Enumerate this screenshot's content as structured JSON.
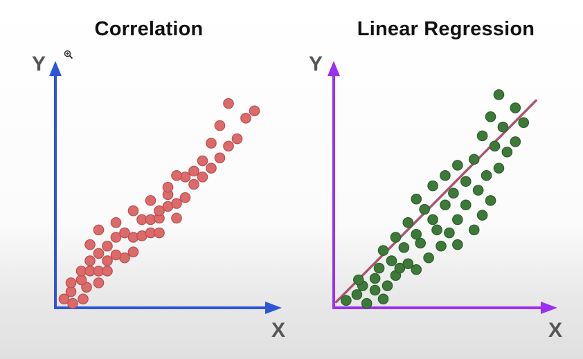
{
  "chart_data": [
    {
      "type": "scatter",
      "title": "Correlation",
      "xlabel": "X",
      "ylabel": "Y",
      "axis_color": "#2d55d6",
      "point_color": "#dd6a6a",
      "point_stroke": "#b94c4c",
      "points": [
        [
          1.0,
          0.6
        ],
        [
          2.0,
          0.3
        ],
        [
          3.2,
          0.6
        ],
        [
          1.8,
          1.1
        ],
        [
          3.6,
          1.4
        ],
        [
          1.8,
          1.7
        ],
        [
          3.0,
          1.9
        ],
        [
          5.0,
          1.7
        ],
        [
          3.0,
          2.5
        ],
        [
          4.0,
          2.5
        ],
        [
          5.0,
          2.5
        ],
        [
          6.0,
          2.5
        ],
        [
          4.0,
          3.2
        ],
        [
          6.0,
          3.2
        ],
        [
          8.0,
          3.4
        ],
        [
          5.0,
          3.7
        ],
        [
          7.0,
          3.6
        ],
        [
          9.0,
          3.8
        ],
        [
          4.0,
          4.3
        ],
        [
          6.0,
          4.2
        ],
        [
          7.0,
          4.8
        ],
        [
          9.0,
          4.8
        ],
        [
          10.0,
          4.9
        ],
        [
          11.0,
          5.1
        ],
        [
          5.0,
          5.3
        ],
        [
          8.0,
          5.1
        ],
        [
          12.0,
          5.1
        ],
        [
          7.0,
          5.8
        ],
        [
          10.0,
          6.0
        ],
        [
          11.0,
          6.0
        ],
        [
          12.0,
          6.1
        ],
        [
          14.0,
          6.1
        ],
        [
          9.0,
          6.6
        ],
        [
          12.0,
          6.6
        ],
        [
          13.0,
          6.9
        ],
        [
          14.0,
          7.1
        ],
        [
          11.0,
          7.3
        ],
        [
          13.0,
          7.7
        ],
        [
          15.0,
          7.5
        ],
        [
          16.0,
          8.4
        ],
        [
          15.0,
          8.9
        ],
        [
          13.0,
          8.2
        ],
        [
          17.0,
          8.9
        ],
        [
          18.0,
          9.5
        ],
        [
          14.0,
          9.0
        ],
        [
          16.0,
          9.3
        ],
        [
          17.0,
          10.0
        ],
        [
          19.0,
          10.2
        ],
        [
          20.0,
          11.0
        ],
        [
          18.0,
          11.2
        ],
        [
          21.0,
          11.5
        ],
        [
          19.0,
          12.4
        ],
        [
          22.0,
          12.9
        ],
        [
          20.0,
          13.9
        ],
        [
          23.0,
          13.4
        ]
      ],
      "xlim": [
        0,
        24
      ],
      "ylim": [
        0,
        16
      ]
    },
    {
      "type": "scatter",
      "title": "Linear Regression",
      "xlabel": "X",
      "ylabel": "Y",
      "axis_color": "#9b30f0",
      "point_color": "#3d7a3a",
      "point_stroke": "#2b5c29",
      "line_color": "#a8566f",
      "regression_line": [
        [
          0.3,
          0.4
        ],
        [
          24.5,
          14.1
        ]
      ],
      "points": [
        [
          1.5,
          0.5
        ],
        [
          4.0,
          0.3
        ],
        [
          6.0,
          0.6
        ],
        [
          2.8,
          0.9
        ],
        [
          5.0,
          1.2
        ],
        [
          3.5,
          1.5
        ],
        [
          6.5,
          1.5
        ],
        [
          3.0,
          1.9
        ],
        [
          5.0,
          2.0
        ],
        [
          7.5,
          2.2
        ],
        [
          5.5,
          2.7
        ],
        [
          8.0,
          2.7
        ],
        [
          10.0,
          2.6
        ],
        [
          7.0,
          3.2
        ],
        [
          9.0,
          3.0
        ],
        [
          11.5,
          3.4
        ],
        [
          6.0,
          3.9
        ],
        [
          8.5,
          4.1
        ],
        [
          10.5,
          4.4
        ],
        [
          13.0,
          4.2
        ],
        [
          15.0,
          4.3
        ],
        [
          7.5,
          4.8
        ],
        [
          10.0,
          5.0
        ],
        [
          12.5,
          5.3
        ],
        [
          14.0,
          5.1
        ],
        [
          17.0,
          5.3
        ],
        [
          9.0,
          5.8
        ],
        [
          12.0,
          6.0
        ],
        [
          15.0,
          6.0
        ],
        [
          18.0,
          6.3
        ],
        [
          11.0,
          6.7
        ],
        [
          13.5,
          7.0
        ],
        [
          16.0,
          7.0
        ],
        [
          19.0,
          7.3
        ],
        [
          10.0,
          7.4
        ],
        [
          14.5,
          7.8
        ],
        [
          17.5,
          8.0
        ],
        [
          12.0,
          8.3
        ],
        [
          16.0,
          8.6
        ],
        [
          18.5,
          9.0
        ],
        [
          13.5,
          9.0
        ],
        [
          20.0,
          9.5
        ],
        [
          15.0,
          9.7
        ],
        [
          17.0,
          10.1
        ],
        [
          21.0,
          10.6
        ],
        [
          19.5,
          11.0
        ],
        [
          22.0,
          11.3
        ],
        [
          18.0,
          11.7
        ],
        [
          20.5,
          12.3
        ],
        [
          23.0,
          12.6
        ],
        [
          19.0,
          13.0
        ],
        [
          22.0,
          13.6
        ],
        [
          20.0,
          14.5
        ]
      ],
      "xlim": [
        0,
        26
      ],
      "ylim": [
        0,
        16
      ]
    }
  ]
}
